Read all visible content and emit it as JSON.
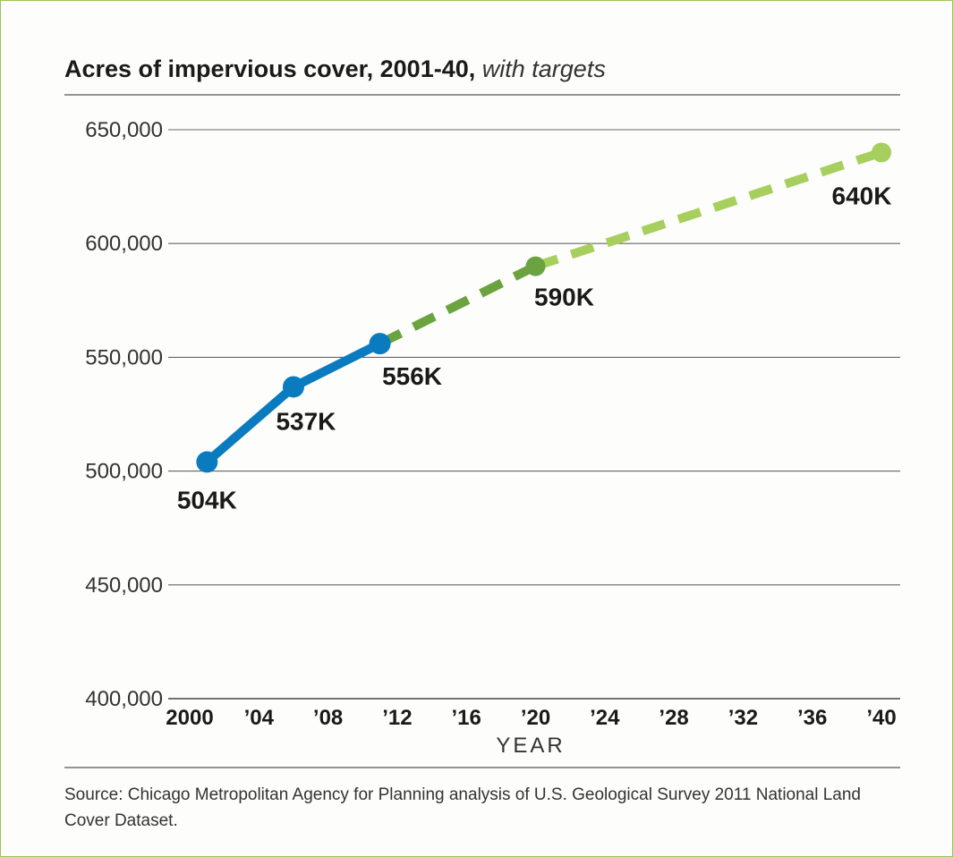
{
  "chart_data": {
    "type": "line",
    "title": "Acres of impervious cover, 2001-40,",
    "subtitle": "with targets",
    "xlabel": "YEAR",
    "ylabel": "",
    "xlim": [
      2000,
      2040
    ],
    "ylim": [
      400000,
      650000
    ],
    "x_ticks": [
      2000,
      2004,
      2008,
      2012,
      2016,
      2020,
      2024,
      2028,
      2032,
      2036,
      2040
    ],
    "x_tick_labels": [
      "2000",
      "’04",
      "’08",
      "’12",
      "’16",
      "’20",
      "’24",
      "’28",
      "’32",
      "’36",
      "’40"
    ],
    "y_ticks": [
      400000,
      450000,
      500000,
      550000,
      600000,
      650000
    ],
    "y_tick_labels": [
      "400,000",
      "450,000",
      "500,000",
      "550,000",
      "600,000",
      "650,000"
    ],
    "grid": true,
    "series": [
      {
        "style": "solid",
        "color": "#0a7bbf",
        "points": [
          {
            "x": 2001,
            "y": 504000,
            "label": "504K"
          },
          {
            "x": 2006,
            "y": 537000,
            "label": "537K"
          },
          {
            "x": 2011,
            "y": 556000,
            "label": "556K"
          }
        ]
      },
      {
        "style": "dashed",
        "color": "#6aa33f",
        "points": [
          {
            "x": 2011,
            "y": 556000
          },
          {
            "x": 2020,
            "y": 590000,
            "label": "590K"
          }
        ]
      },
      {
        "style": "dashed",
        "color": "#a6cf5e",
        "points": [
          {
            "x": 2020,
            "y": 590000
          },
          {
            "x": 2040,
            "y": 640000,
            "label": "640K"
          }
        ]
      }
    ]
  },
  "source": {
    "text": "Source: Chicago Metropolitan Agency for Planning analysis of U.S. Geological Survey 2011 National Land Cover Dataset."
  }
}
